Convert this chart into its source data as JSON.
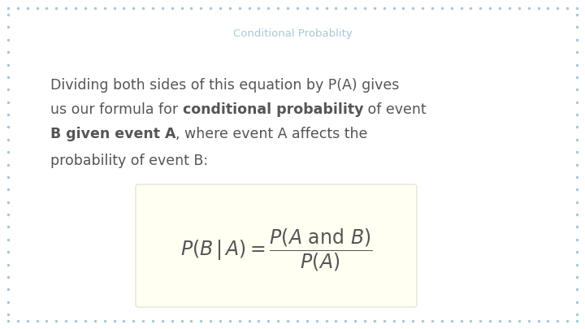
{
  "title": "Conditional Probablity",
  "title_color": "#a8c8d8",
  "title_fontsize": 9.5,
  "background_color": "#ffffff",
  "border_color": "#a8c8d8",
  "dot_color": "#a8c8d8",
  "text_color": "#555555",
  "text_fontsize": 12.5,
  "formula_fontsize": 17,
  "formula_box_color": "#fffff2",
  "formula_box_edge_color": "#e0e0c8",
  "line1": "Dividing both sides of this equation by P(A) gives",
  "line2_p1": "us our formula for ",
  "line2_bold": "conditional probability",
  "line2_p2": " of event",
  "line3_bold": "B given event A",
  "line3_p2": ", where event A affects the",
  "line4": "probability of event B:"
}
